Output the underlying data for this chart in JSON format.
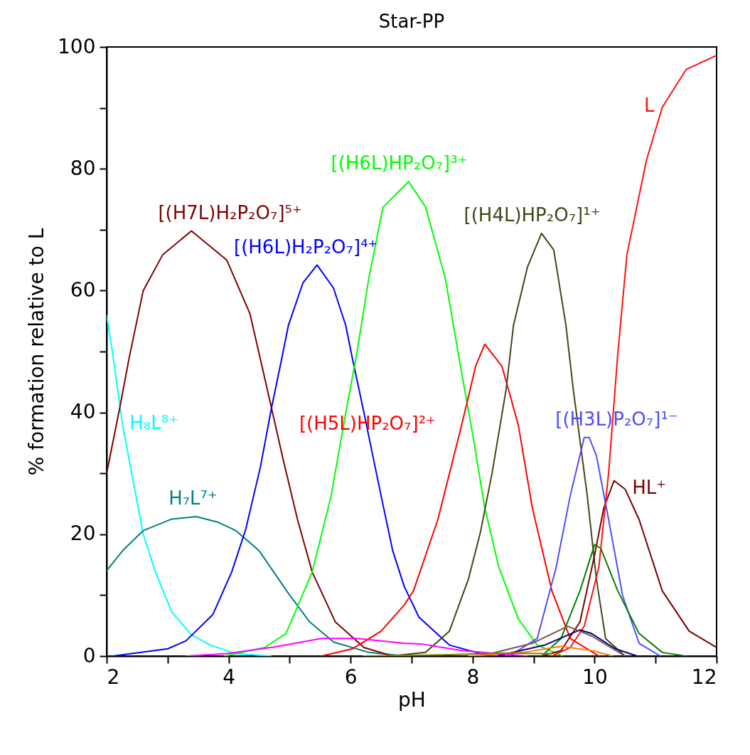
{
  "chart_data": {
    "type": "line",
    "title": "Star-PP",
    "xlabel": "pH",
    "ylabel": "% formation relative to L",
    "xlim": [
      2,
      12
    ],
    "ylim": [
      0,
      100
    ],
    "xticks": [
      2,
      {
        "value": 3,
        "label": null
      },
      4,
      {
        "value": 5,
        "label": null
      },
      6,
      {
        "value": 7,
        "label": null
      },
      8,
      {
        "value": 9,
        "label": null
      },
      10,
      {
        "value": 11,
        "label": null
      },
      12
    ],
    "yticks": [
      0,
      {
        "value": 10,
        "label": null
      },
      20,
      {
        "value": 30,
        "label": null
      },
      40,
      {
        "value": 50,
        "label": null
      },
      60,
      {
        "value": 70,
        "label": null
      },
      80,
      {
        "value": 90,
        "label": null
      },
      100
    ],
    "grid": false,
    "series": [
      {
        "name": "H₈L⁸⁺",
        "color": "#00ffff",
        "x": [
          2,
          2.1,
          2.26,
          2.6,
          2.8,
          3.07,
          3.39,
          3.7,
          4.12,
          4.7
        ],
        "values": [
          56,
          49.6,
          38,
          20,
          13.8,
          7.2,
          3.5,
          1.8,
          0.4,
          0
        ]
      },
      {
        "name": "H₇L⁷⁺",
        "color": "#008080",
        "x": [
          2,
          2.28,
          2.6,
          3.07,
          3.47,
          3.82,
          4.12,
          4.5,
          4.98,
          5.33,
          5.72,
          6.3,
          6.9
        ],
        "values": [
          14,
          17.5,
          20.6,
          22.5,
          22.9,
          22,
          20.6,
          17.3,
          10.3,
          5.6,
          2.3,
          0.6,
          0
        ]
      },
      {
        "name": "[(H7L)H₂P₂O₇]⁵⁺",
        "color": "#800000",
        "x": [
          2,
          2.22,
          2.37,
          2.6,
          2.92,
          3.39,
          3.97,
          4.35,
          4.59,
          4.9,
          5.13,
          5.37,
          5.75,
          6.22,
          6.69,
          7.0
        ],
        "values": [
          30,
          41,
          49,
          60,
          65.9,
          69.8,
          65,
          56.2,
          45.7,
          32,
          22.4,
          13.8,
          5.6,
          1.4,
          0,
          0
        ]
      },
      {
        "name": "[(H6L)H₂P₂O₇]⁴⁺",
        "color": "#0000ff",
        "x": [
          2.1,
          3.0,
          3.3,
          3.74,
          4.05,
          4.28,
          4.52,
          4.7,
          4.87,
          4.98,
          5.22,
          5.45,
          5.72,
          5.92,
          6.03,
          6.18,
          6.5,
          6.69,
          6.88,
          7.12,
          7.62,
          8.28,
          8.6
        ],
        "values": [
          0,
          1.2,
          2.5,
          6.8,
          13.8,
          20.8,
          31,
          40.6,
          48.8,
          54.3,
          61.3,
          64.2,
          60.4,
          54.3,
          48.8,
          41.8,
          26.3,
          17.3,
          11.4,
          6.4,
          1.8,
          0,
          0
        ]
      },
      {
        "name": "[(H6L)HP₂O₇]³⁺",
        "color": "#00ff00",
        "x": [
          3.93,
          4.59,
          4.94,
          5.37,
          5.68,
          5.92,
          6.1,
          6.3,
          6.53,
          6.95,
          7.23,
          7.55,
          7.78,
          8.01,
          8.2,
          8.43,
          8.75,
          9.06,
          9.48
        ],
        "values": [
          0,
          1.4,
          3.7,
          13.8,
          26.3,
          39.9,
          49.6,
          62.1,
          73.7,
          77.9,
          73.7,
          62.1,
          48.8,
          35.9,
          24.3,
          14.6,
          6.1,
          1.8,
          0
        ]
      },
      {
        "name": "[(H5L)HP₂O₇]²⁺",
        "color": "#ff0000",
        "x": [
          5.52,
          6.03,
          6.5,
          6.88,
          7.03,
          7.43,
          7.82,
          8.05,
          8.2,
          8.48,
          8.75,
          8.98,
          9.3,
          9.6,
          10.07
        ],
        "values": [
          0,
          1.2,
          4.1,
          8.4,
          10.7,
          22.4,
          37.9,
          47.6,
          51.2,
          47.6,
          37.9,
          24.3,
          10.7,
          2.9,
          0
        ]
      },
      {
        "name": "[(H4L)HP₂O₇]¹⁺",
        "color": "#45451a",
        "x": [
          6.65,
          7.23,
          7.62,
          7.93,
          8.13,
          8.32,
          8.55,
          8.67,
          8.9,
          9.13,
          9.33,
          9.53,
          9.65,
          9.88,
          10.03,
          10.18,
          10.5
        ],
        "values": [
          0,
          0.6,
          4.1,
          12.6,
          20.4,
          30.1,
          43.8,
          54.3,
          63.9,
          69.4,
          66.7,
          54.3,
          43.8,
          26.3,
          12.6,
          2.9,
          0
        ]
      },
      {
        "name": "[(H3L)P₂O₇]¹⁻",
        "color": "#4d4dff",
        "x": [
          8.6,
          9.06,
          9.37,
          9.6,
          9.83,
          9.91,
          10.03,
          10.23,
          10.46,
          10.73,
          11.08
        ],
        "values": [
          0,
          2.9,
          14.6,
          26.3,
          35.9,
          35.9,
          32.9,
          22.4,
          9.9,
          2.1,
          0
        ]
      },
      {
        "name": "HL⁺",
        "color": "#7a0000",
        "x": [
          9.13,
          9.45,
          9.76,
          10.0,
          10.15,
          10.32,
          10.5,
          10.73,
          11.11,
          11.55,
          12.0
        ],
        "values": [
          0,
          0.9,
          5.6,
          16.6,
          24.3,
          28.8,
          27.4,
          22.4,
          10.7,
          4.1,
          1.4
        ]
      },
      {
        "name": "L",
        "color": "#ff1010",
        "x": [
          9.3,
          9.6,
          9.83,
          10.07,
          10.23,
          10.38,
          10.53,
          10.85,
          11.11,
          11.5,
          12.0
        ],
        "values": [
          0,
          1.4,
          4.9,
          14.6,
          30.1,
          49.6,
          65.9,
          81.4,
          90.1,
          96.3,
          98.6
        ]
      },
      {
        "color": "#008000",
        "x": [
          9.13,
          9.45,
          9.76,
          10.0,
          10.1,
          10.38,
          10.73,
          11.11,
          11.5
        ],
        "values": [
          0,
          2.9,
          10.7,
          18.3,
          17.7,
          10.7,
          3.7,
          0.6,
          0
        ]
      },
      {
        "color": "#000080",
        "x": [
          8.4,
          9.18,
          9.76,
          9.95,
          10.34,
          10.7
        ],
        "values": [
          0,
          1.8,
          4.3,
          3.7,
          1.2,
          0
        ]
      },
      {
        "color": "#805050",
        "x": [
          8.13,
          8.98,
          9.56,
          9.95,
          10.5
        ],
        "values": [
          0,
          2.1,
          4.9,
          3.3,
          0
        ]
      },
      {
        "color": "#ff8000",
        "x": [
          7.93,
          8.83,
          9.45,
          9.95,
          10.3
        ],
        "values": [
          0,
          0.6,
          1.6,
          0.9,
          0
        ]
      },
      {
        "color": "#ff00ff",
        "x": [
          3.3,
          3.97,
          4.75,
          5.52,
          6.1,
          6.88,
          7.15,
          7.82,
          8.9
        ],
        "values": [
          0,
          0.4,
          1.5,
          2.9,
          2.9,
          2.1,
          2.0,
          0.9,
          0
        ]
      },
      {
        "color": "#808000",
        "x": [
          6.2,
          7.5,
          8.5,
          9.3
        ],
        "values": [
          0,
          0.2,
          0.5,
          0.4
        ]
      }
    ]
  }
}
